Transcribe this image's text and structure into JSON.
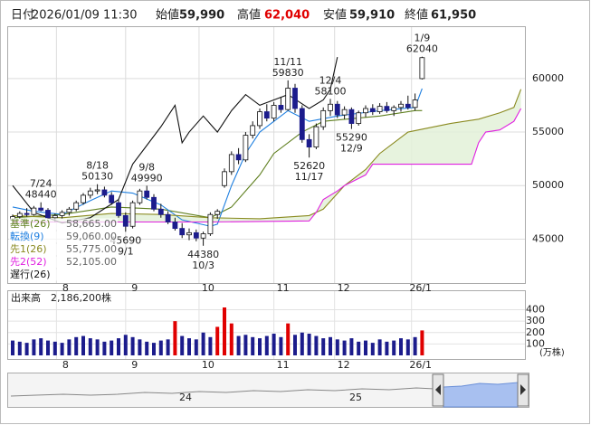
{
  "header": {
    "items": [
      {
        "label": "日付",
        "text": "2026/01/09 11:30"
      },
      {
        "label": "始値",
        "text": "59,990"
      },
      {
        "label": "高値",
        "text": "62,040",
        "color": "#e00000"
      },
      {
        "label": "安値",
        "text": "59,910"
      },
      {
        "label": "終値",
        "text": "61,950"
      }
    ]
  },
  "chart_data": {
    "type": "candlestick",
    "ylim": [
      40900,
      64800
    ],
    "yticks": [
      45000,
      50000,
      55000,
      60000
    ],
    "xticks": [
      {
        "value": 6.2,
        "label": "8"
      },
      {
        "value": 16,
        "label": "9"
      },
      {
        "value": 26.4,
        "label": "10"
      },
      {
        "value": 37,
        "label": "11"
      },
      {
        "value": 45.6,
        "label": "12"
      },
      {
        "value": 56.5,
        "label": "26/1"
      }
    ],
    "grid": true,
    "up_color": "#ffffff",
    "down_color": "#1c1c8c",
    "ohlc": {
      "open": [
        46800,
        47100,
        47400,
        47300,
        47900,
        47700,
        47000,
        47200,
        47500,
        47800,
        48400,
        49100,
        49500,
        49600,
        49100,
        48400,
        47200,
        46200,
        48400,
        49500,
        48900,
        47800,
        47300,
        46600,
        46000,
        45400,
        45600,
        45100,
        45500,
        47300,
        50000,
        51300,
        52900,
        52400,
        54700,
        55600,
        56900,
        56300,
        57500,
        57100,
        59100,
        57200,
        54300,
        53600,
        55500,
        57000,
        57600,
        56600,
        57100,
        55800,
        56800,
        57200,
        56900,
        57400,
        57000,
        57300,
        57600,
        57300,
        59990
      ],
      "high": [
        47300,
        47600,
        47900,
        48100,
        48440,
        47900,
        47400,
        47700,
        48000,
        48600,
        49300,
        49800,
        50130,
        49900,
        49400,
        48700,
        47500,
        48600,
        49700,
        49990,
        49200,
        48300,
        47600,
        47000,
        46500,
        46000,
        45900,
        45700,
        47500,
        47800,
        51600,
        53200,
        53500,
        55000,
        56000,
        57200,
        57600,
        57800,
        58300,
        59830,
        59500,
        57500,
        54800,
        55800,
        57300,
        58100,
        57900,
        57400,
        57300,
        57000,
        57500,
        57600,
        57700,
        57800,
        57500,
        57900,
        58400,
        58600,
        62040
      ],
      "low": [
        46500,
        46900,
        47100,
        47200,
        47600,
        46900,
        46600,
        46900,
        47200,
        47600,
        48200,
        48800,
        49200,
        48900,
        48200,
        47000,
        45690,
        46000,
        48200,
        48700,
        47600,
        47000,
        46400,
        45800,
        45100,
        44900,
        44800,
        44380,
        45300,
        46900,
        49800,
        51000,
        52000,
        52200,
        54400,
        55300,
        56000,
        56000,
        56800,
        57000,
        56800,
        54000,
        52620,
        53400,
        55200,
        56500,
        56300,
        56200,
        55290,
        55600,
        56400,
        56600,
        56700,
        56800,
        56500,
        56900,
        57100,
        57000,
        59910
      ],
      "close": [
        47100,
        47400,
        47300,
        47900,
        47700,
        47000,
        47200,
        47500,
        47800,
        48400,
        49100,
        49500,
        49600,
        49100,
        48400,
        47200,
        46200,
        48400,
        49500,
        48900,
        47800,
        47300,
        46600,
        46000,
        45400,
        45600,
        45100,
        45500,
        47300,
        47600,
        51300,
        52900,
        52400,
        54700,
        55600,
        56900,
        56300,
        57500,
        57100,
        59100,
        57200,
        54300,
        53600,
        55500,
        57000,
        57600,
        56600,
        57100,
        55800,
        56800,
        57200,
        56900,
        57400,
        57000,
        57300,
        57600,
        57300,
        58000,
        61950
      ]
    },
    "series": [
      {
        "name": "基準(26)",
        "legend_value": "58,665.00",
        "color": "#5f7f1f",
        "x": [
          0,
          7,
          14,
          21,
          28,
          31,
          33,
          35,
          37,
          41,
          44,
          52,
          57,
          58
        ],
        "values": [
          47000,
          47300,
          48000,
          47800,
          47000,
          48000,
          49500,
          51000,
          53000,
          55000,
          56000,
          56500,
          57000,
          57000
        ]
      },
      {
        "name": "転換(9)",
        "legend_value": "59,060.00",
        "color": "#1e7fe0",
        "x": [
          0,
          3,
          7,
          11,
          14,
          17,
          21,
          24,
          28,
          29,
          31,
          33,
          35,
          39,
          42,
          46,
          52,
          57,
          58
        ],
        "values": [
          48000,
          47600,
          47300,
          48600,
          49500,
          49300,
          48200,
          46800,
          46200,
          46400,
          50000,
          53000,
          55000,
          57000,
          56000,
          56500,
          57000,
          57300,
          59060
        ]
      },
      {
        "name": "先1(26)",
        "legend_value": "55,775.00",
        "color": "#8a8a20",
        "x": [
          0,
          7,
          14,
          21,
          28,
          35,
          42,
          44,
          47,
          50,
          52,
          56,
          62,
          66,
          69,
          71,
          72
        ],
        "values": [
          47200,
          47000,
          47400,
          47300,
          47000,
          46900,
          47200,
          47800,
          50000,
          51500,
          53000,
          55000,
          55800,
          56200,
          56800,
          57300,
          59000
        ]
      },
      {
        "name": "先2(52)",
        "legend_value": "52,105.00",
        "color": "#e020e0",
        "x": [
          0,
          28,
          42,
          43,
          44,
          46,
          47,
          50,
          51,
          65,
          66,
          67,
          69,
          71,
          72
        ],
        "values": [
          46600,
          46600,
          46700,
          47500,
          48700,
          49500,
          50000,
          51000,
          52000,
          52000,
          54000,
          55000,
          55200,
          56000,
          57200
        ]
      },
      {
        "name": "遅行(26)",
        "color": "#111111",
        "x": [
          0,
          3,
          7,
          11,
          15,
          17,
          21,
          23,
          24,
          25,
          27,
          29,
          31,
          33,
          35,
          37,
          39,
          42,
          44,
          45,
          46
        ],
        "values": [
          50000,
          47500,
          46500,
          47000,
          48700,
          52000,
          55500,
          57500,
          54000,
          55000,
          56500,
          55000,
          57000,
          58500,
          57500,
          58000,
          58500,
          57200,
          58000,
          59000,
          62000
        ]
      }
    ],
    "annotations": [
      {
        "date": "7/24",
        "value": 48440
      },
      {
        "date": "8/18",
        "value": 50130
      },
      {
        "date": "9/8",
        "value": 49990
      },
      {
        "date": "9/1",
        "value": 45690
      },
      {
        "date": "10/3",
        "value": 44380
      },
      {
        "date": "11/11",
        "value": 59830
      },
      {
        "date": "11/17",
        "value": 52620
      },
      {
        "date": "12/4",
        "value": 58100
      },
      {
        "date": "12/9",
        "value": 55290
      },
      {
        "date": "1/9",
        "value": 62040
      }
    ],
    "volume": {
      "title": "出来高",
      "last_text": "2,186,200株",
      "unit": "(万株)",
      "ylim": [
        0,
        420
      ],
      "yticks": [
        100,
        200,
        300,
        400
      ],
      "color": "#1c1c8c",
      "highlight_color": "#e00000",
      "highlight": [
        23,
        29,
        30,
        31,
        39,
        58
      ],
      "values": [
        130,
        120,
        110,
        140,
        150,
        130,
        120,
        110,
        140,
        160,
        170,
        150,
        140,
        120,
        130,
        150,
        180,
        160,
        140,
        120,
        110,
        130,
        140,
        300,
        170,
        150,
        140,
        200,
        160,
        250,
        420,
        280,
        170,
        180,
        160,
        150,
        170,
        190,
        160,
        280,
        180,
        200,
        190,
        170,
        150,
        160,
        140,
        130,
        150,
        120,
        130,
        110,
        140,
        120,
        130,
        150,
        140,
        160,
        218.62
      ]
    }
  },
  "navigator": {
    "labels": [
      "24",
      "25"
    ]
  }
}
